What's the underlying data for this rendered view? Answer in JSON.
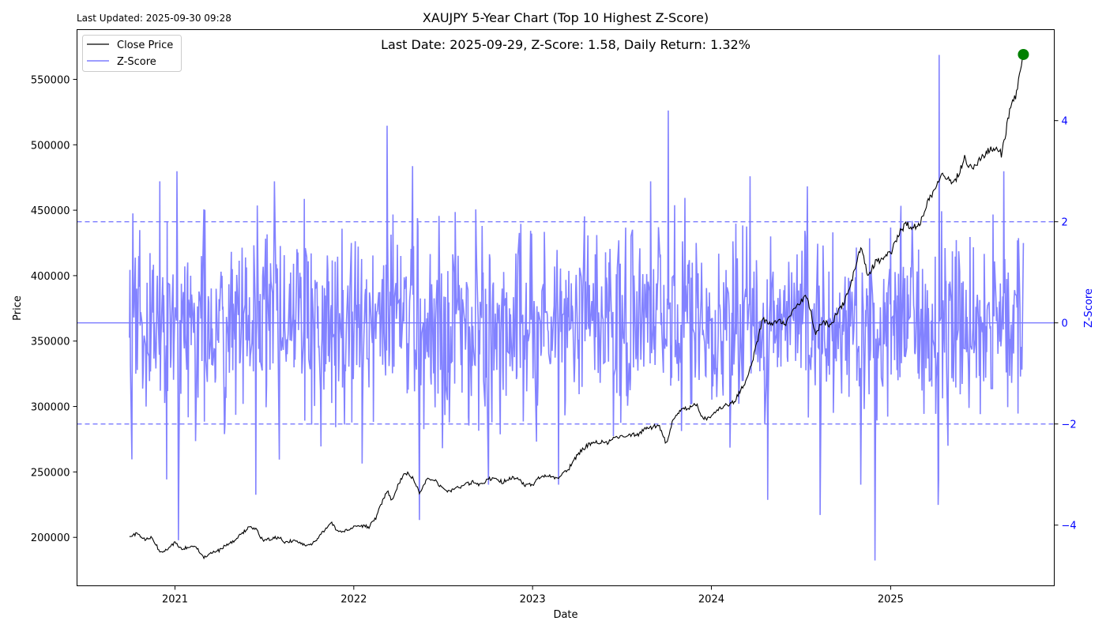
{
  "last_updated": "Last Updated: 2025-09-30 09:28",
  "chart_data": {
    "type": "line",
    "title": "XAUJPY 5-Year Chart (Top 10 Highest Z-Score)",
    "annotation": "Last Date: 2025-09-29, Z-Score: 1.58, Daily Return: 1.32%",
    "xlabel": "Date",
    "ylabel": "Price",
    "ylabel_right": "Z-Score",
    "xlim": [
      "2020-06-15",
      "2025-12-01"
    ],
    "ylim": [
      163000,
      588000
    ],
    "ylim_right": [
      -5.2,
      5.8
    ],
    "x_ticks": [
      "2021",
      "2022",
      "2023",
      "2024",
      "2025"
    ],
    "y_ticks": [
      200000,
      250000,
      300000,
      350000,
      400000,
      450000,
      500000,
      550000
    ],
    "y_ticks_right": [
      -4,
      -2,
      0,
      2,
      4
    ],
    "reference_lines_right": [
      2,
      -2,
      0
    ],
    "legend": {
      "placement": "top-left",
      "entries": [
        "Close Price",
        "Z-Score"
      ]
    },
    "grid": false,
    "series": [
      {
        "name": "Close Price",
        "color": "#000000",
        "points": [
          [
            "2020-09-30",
            200000
          ],
          [
            "2020-10-15",
            203000
          ],
          [
            "2020-11-01",
            198000
          ],
          [
            "2020-11-15",
            200000
          ],
          [
            "2020-12-01",
            189000
          ],
          [
            "2020-12-15",
            190000
          ],
          [
            "2021-01-01",
            196000
          ],
          [
            "2021-01-15",
            191000
          ],
          [
            "2021-02-01",
            193000
          ],
          [
            "2021-02-15",
            192000
          ],
          [
            "2021-03-01",
            185000
          ],
          [
            "2021-03-15",
            188000
          ],
          [
            "2021-04-01",
            190000
          ],
          [
            "2021-04-15",
            194000
          ],
          [
            "2021-05-01",
            197000
          ],
          [
            "2021-05-15",
            202000
          ],
          [
            "2021-06-01",
            208000
          ],
          [
            "2021-06-15",
            206000
          ],
          [
            "2021-07-01",
            197000
          ],
          [
            "2021-07-15",
            199000
          ],
          [
            "2021-08-01",
            200000
          ],
          [
            "2021-08-15",
            196000
          ],
          [
            "2021-09-01",
            198000
          ],
          [
            "2021-09-15",
            195000
          ],
          [
            "2021-10-01",
            194000
          ],
          [
            "2021-10-15",
            197000
          ],
          [
            "2021-11-01",
            205000
          ],
          [
            "2021-11-15",
            212000
          ],
          [
            "2021-12-01",
            204000
          ],
          [
            "2021-12-15",
            205000
          ],
          [
            "2022-01-01",
            208000
          ],
          [
            "2022-01-15",
            209000
          ],
          [
            "2022-02-01",
            208000
          ],
          [
            "2022-02-15",
            215000
          ],
          [
            "2022-03-01",
            228000
          ],
          [
            "2022-03-10",
            236000
          ],
          [
            "2022-03-20",
            228000
          ],
          [
            "2022-04-01",
            240000
          ],
          [
            "2022-04-15",
            250000
          ],
          [
            "2022-05-01",
            246000
          ],
          [
            "2022-05-15",
            234000
          ],
          [
            "2022-06-01",
            246000
          ],
          [
            "2022-06-15",
            244000
          ],
          [
            "2022-07-01",
            238000
          ],
          [
            "2022-07-15",
            235000
          ],
          [
            "2022-08-01",
            238000
          ],
          [
            "2022-08-15",
            240000
          ],
          [
            "2022-09-01",
            242000
          ],
          [
            "2022-09-15",
            240000
          ],
          [
            "2022-10-01",
            244000
          ],
          [
            "2022-10-15",
            246000
          ],
          [
            "2022-11-01",
            242000
          ],
          [
            "2022-11-15",
            245000
          ],
          [
            "2022-12-01",
            246000
          ],
          [
            "2022-12-15",
            240000
          ],
          [
            "2023-01-01",
            240000
          ],
          [
            "2023-01-15",
            246000
          ],
          [
            "2023-02-01",
            248000
          ],
          [
            "2023-02-15",
            245000
          ],
          [
            "2023-03-01",
            247000
          ],
          [
            "2023-03-15",
            252000
          ],
          [
            "2023-04-01",
            262000
          ],
          [
            "2023-04-15",
            268000
          ],
          [
            "2023-05-01",
            272000
          ],
          [
            "2023-05-15",
            273000
          ],
          [
            "2023-06-01",
            272000
          ],
          [
            "2023-06-15",
            275000
          ],
          [
            "2023-07-01",
            277000
          ],
          [
            "2023-07-15",
            279000
          ],
          [
            "2023-08-01",
            278000
          ],
          [
            "2023-08-15",
            282000
          ],
          [
            "2023-09-01",
            284000
          ],
          [
            "2023-09-15",
            286000
          ],
          [
            "2023-10-01",
            272000
          ],
          [
            "2023-10-15",
            290000
          ],
          [
            "2023-11-01",
            297000
          ],
          [
            "2023-11-15",
            299000
          ],
          [
            "2023-12-01",
            302000
          ],
          [
            "2023-12-15",
            290000
          ],
          [
            "2024-01-01",
            293000
          ],
          [
            "2024-01-15",
            297000
          ],
          [
            "2024-02-01",
            301000
          ],
          [
            "2024-02-15",
            303000
          ],
          [
            "2024-03-01",
            312000
          ],
          [
            "2024-03-15",
            322000
          ],
          [
            "2024-04-01",
            345000
          ],
          [
            "2024-04-15",
            367000
          ],
          [
            "2024-05-01",
            362000
          ],
          [
            "2024-05-15",
            366000
          ],
          [
            "2024-06-01",
            364000
          ],
          [
            "2024-06-15",
            372000
          ],
          [
            "2024-07-01",
            380000
          ],
          [
            "2024-07-15",
            384000
          ],
          [
            "2024-08-01",
            355000
          ],
          [
            "2024-08-15",
            365000
          ],
          [
            "2024-09-01",
            362000
          ],
          [
            "2024-09-15",
            372000
          ],
          [
            "2024-10-01",
            382000
          ],
          [
            "2024-10-15",
            398000
          ],
          [
            "2024-11-01",
            422000
          ],
          [
            "2024-11-15",
            400000
          ],
          [
            "2024-12-01",
            410000
          ],
          [
            "2024-12-15",
            413000
          ],
          [
            "2025-01-01",
            417000
          ],
          [
            "2025-01-15",
            430000
          ],
          [
            "2025-02-01",
            440000
          ],
          [
            "2025-02-15",
            437000
          ],
          [
            "2025-03-01",
            438000
          ],
          [
            "2025-03-15",
            455000
          ],
          [
            "2025-04-01",
            466000
          ],
          [
            "2025-04-15",
            480000
          ],
          [
            "2025-05-01",
            472000
          ],
          [
            "2025-05-15",
            474000
          ],
          [
            "2025-06-01",
            490000
          ],
          [
            "2025-06-15",
            482000
          ],
          [
            "2025-07-01",
            488000
          ],
          [
            "2025-07-15",
            494000
          ],
          [
            "2025-08-01",
            497000
          ],
          [
            "2025-08-15",
            493000
          ],
          [
            "2025-09-01",
            525000
          ],
          [
            "2025-09-15",
            540000
          ],
          [
            "2025-09-29",
            569000
          ]
        ]
      },
      {
        "name": "Z-Score",
        "color": "#7b7bff",
        "generated": true,
        "seed": 7,
        "start": "2020-09-30",
        "end": "2025-09-29",
        "spikes": [
          [
            "2020-10-05",
            -2.7
          ],
          [
            "2020-12-01",
            2.8
          ],
          [
            "2021-01-05",
            3.0
          ],
          [
            "2021-01-08",
            -4.3
          ],
          [
            "2021-06-15",
            -3.4
          ],
          [
            "2022-03-10",
            3.9
          ],
          [
            "2022-05-01",
            3.1
          ],
          [
            "2022-05-15",
            -3.9
          ],
          [
            "2023-01-25",
            1.8
          ],
          [
            "2023-10-05",
            4.2
          ],
          [
            "2024-03-20",
            2.9
          ],
          [
            "2024-04-25",
            -3.5
          ],
          [
            "2024-07-15",
            2.7
          ],
          [
            "2024-08-10",
            -3.8
          ],
          [
            "2024-11-30",
            -4.7
          ],
          [
            "2025-04-10",
            5.3
          ],
          [
            "2025-04-08",
            -3.6
          ],
          [
            "2025-08-20",
            3.0
          ],
          [
            "2025-09-29",
            1.58
          ]
        ]
      }
    ],
    "highlight_point": {
      "date": "2025-09-29",
      "value": 569000,
      "color": "#008000"
    }
  }
}
